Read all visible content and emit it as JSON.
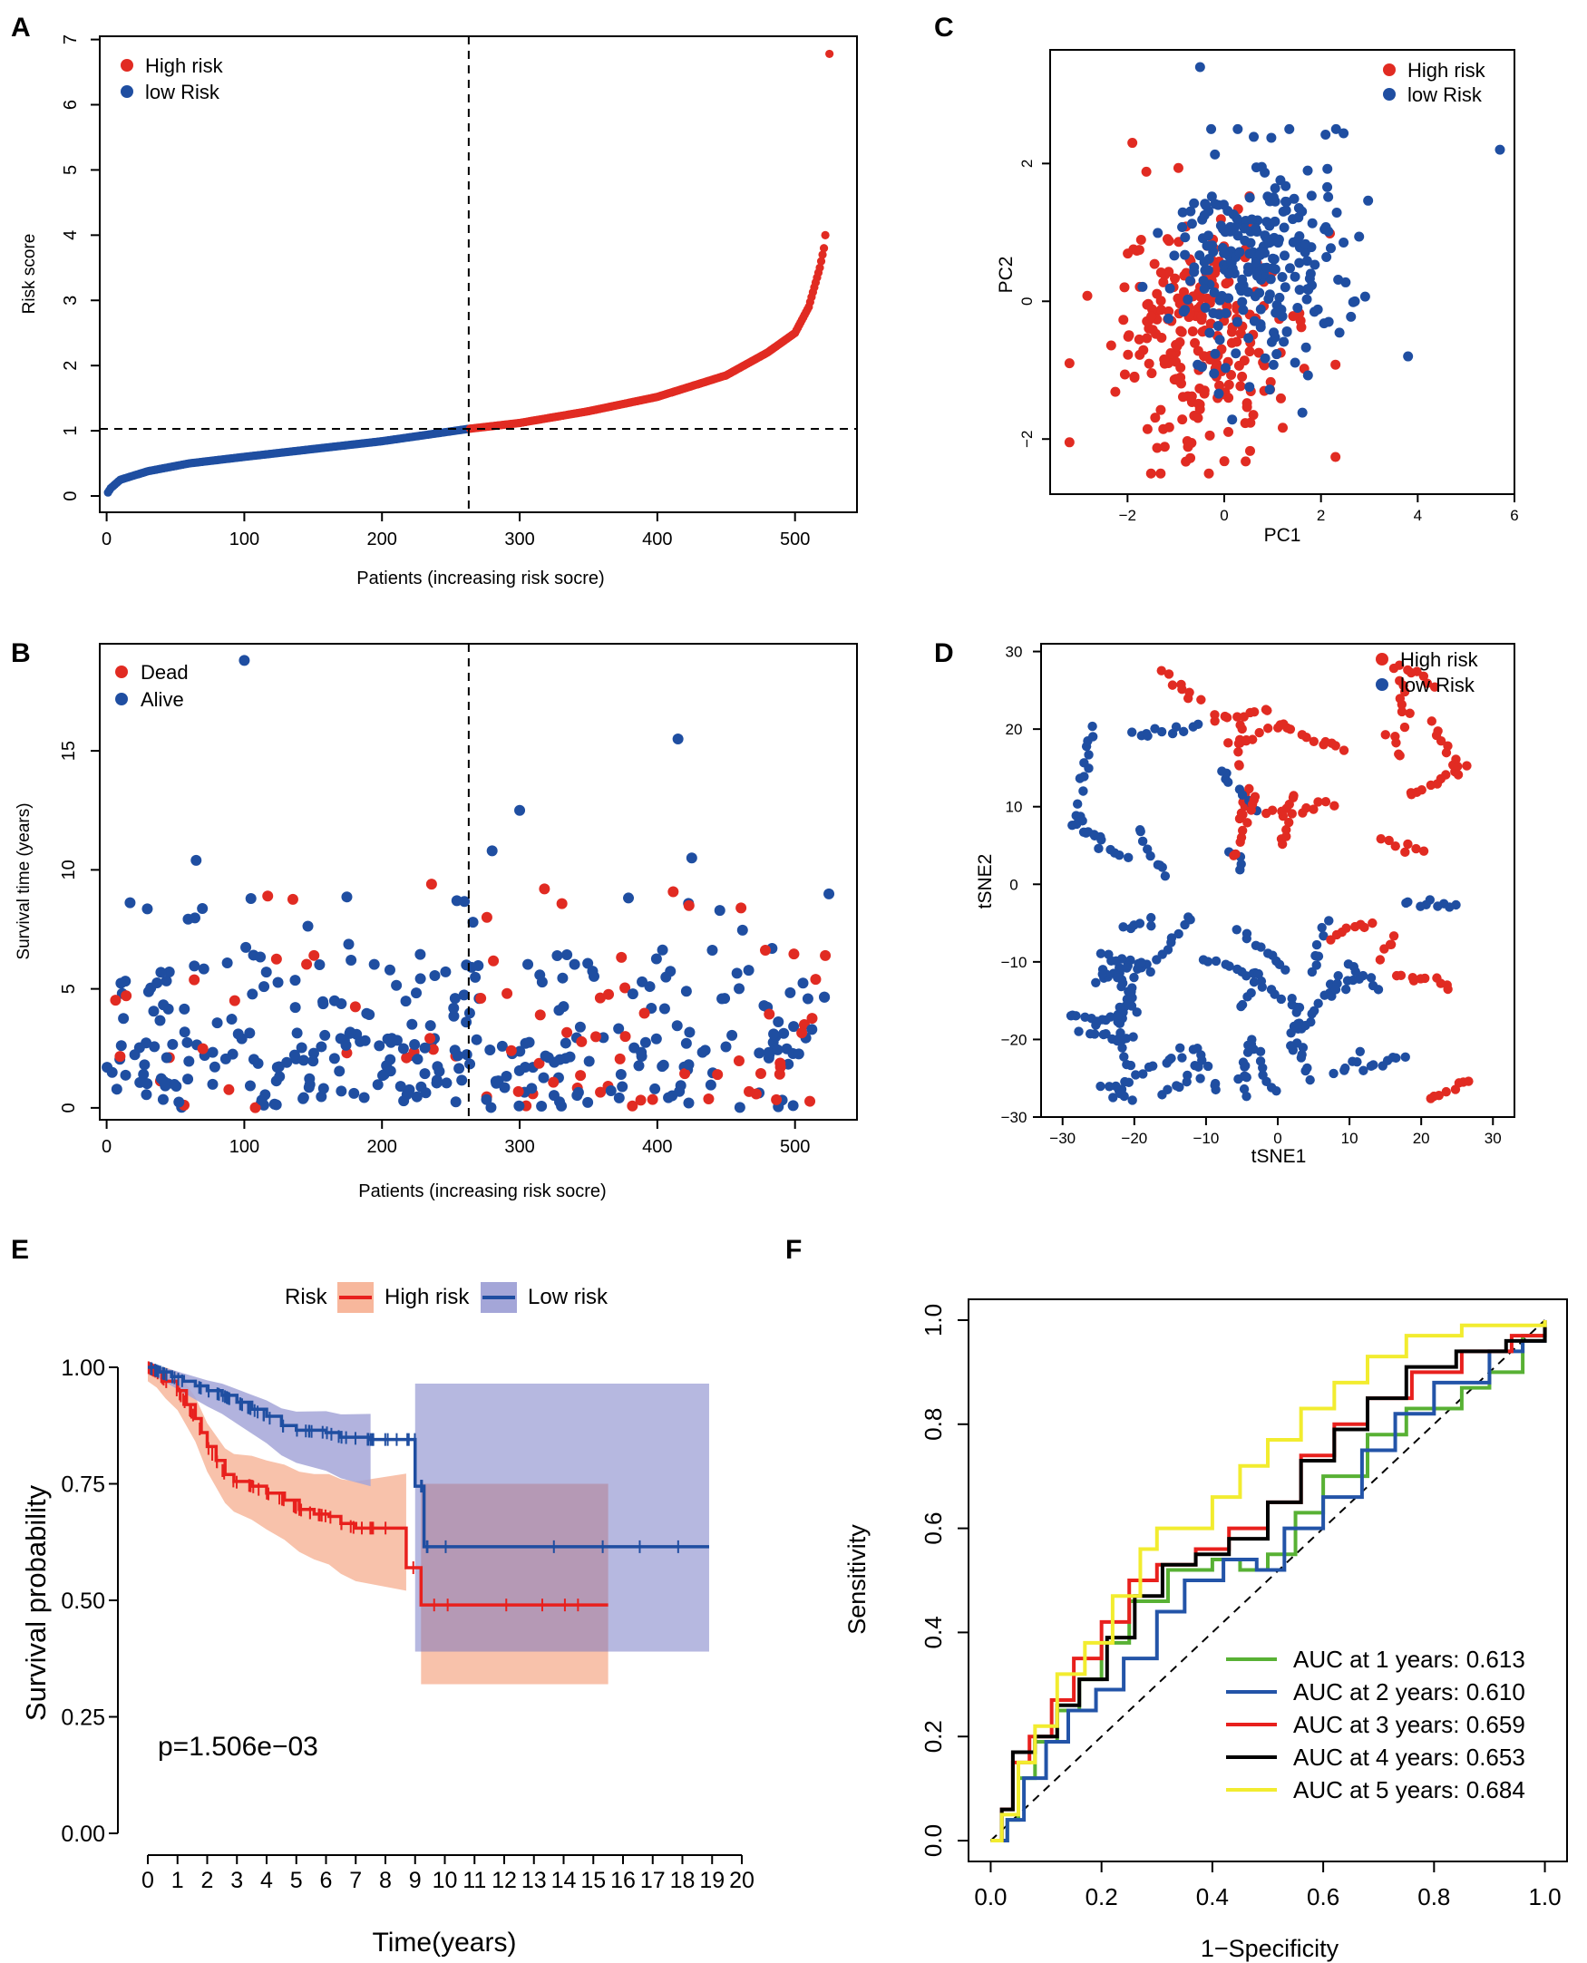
{
  "colors": {
    "high": "#e12b22",
    "low": "#1f4ea1",
    "green": "#58b134",
    "blue": "#2354a8",
    "red": "#e8201d",
    "black": "#000000",
    "yellow": "#f2ec2f",
    "high_ci": "#f7b79c",
    "low_ci": "#a4a6d8",
    "overlap": "#b58aa1"
  },
  "chart_data": [
    {
      "panel": "A",
      "type": "scatter",
      "xlabel": "Patients (increasing risk socre)",
      "ylabel": "Risk score",
      "xlim": [
        -5,
        545
      ],
      "ylim": [
        -0.25,
        7.05
      ],
      "xticks": [
        "0",
        "100",
        "200",
        "300",
        "400",
        "500"
      ],
      "yticks": [
        "0",
        "1",
        "2",
        "3",
        "4",
        "5",
        "6",
        "7"
      ],
      "cutoff_x": 263,
      "cutoff_y": 1.03,
      "n_patients": 525,
      "legend": [
        "High risk",
        "low Risk"
      ],
      "curve_anchor_points": [
        [
          0,
          0.02
        ],
        [
          3,
          0.12
        ],
        [
          10,
          0.25
        ],
        [
          30,
          0.38
        ],
        [
          60,
          0.5
        ],
        [
          100,
          0.6
        ],
        [
          150,
          0.72
        ],
        [
          200,
          0.84
        ],
        [
          263,
          1.03
        ],
        [
          300,
          1.12
        ],
        [
          350,
          1.3
        ],
        [
          400,
          1.52
        ],
        [
          450,
          1.85
        ],
        [
          480,
          2.2
        ],
        [
          500,
          2.5
        ],
        [
          510,
          2.9
        ],
        [
          518,
          3.5
        ],
        [
          521,
          3.8
        ],
        [
          522,
          4.0
        ]
      ],
      "outlier": [
        525,
        6.78
      ]
    },
    {
      "panel": "B",
      "type": "scatter",
      "xlabel": "Patients (increasing risk socre)",
      "ylabel": "Survival time (years)",
      "xlim": [
        -5,
        545
      ],
      "ylim": [
        -0.5,
        19.5
      ],
      "xticks": [
        "0",
        "100",
        "200",
        "300",
        "400",
        "500"
      ],
      "yticks": [
        "0",
        "5",
        "10",
        "15"
      ],
      "cutoff_x": 263,
      "legend": [
        "Dead",
        "Alive"
      ],
      "notable_points": [
        [
          100,
          18.8,
          "alive"
        ],
        [
          415,
          15.5,
          "alive"
        ],
        [
          300,
          12.5,
          "alive"
        ],
        [
          65,
          10.4,
          "alive"
        ],
        [
          280,
          10.8,
          "alive"
        ],
        [
          425,
          10.5,
          "alive"
        ],
        [
          117,
          8.9,
          "dead"
        ],
        [
          236,
          9.4,
          "dead"
        ],
        [
          318,
          9.2,
          "dead"
        ],
        [
          423,
          8.5,
          "dead"
        ],
        [
          522,
          6.4,
          "dead"
        ],
        [
          515,
          5.4,
          "dead"
        ]
      ]
    },
    {
      "panel": "C",
      "type": "scatter",
      "xlabel": "PC1",
      "ylabel": "PC2",
      "xlim": [
        -3.6,
        6.0
      ],
      "ylim": [
        -2.8,
        3.65
      ],
      "xticks": [
        "−2",
        "0",
        "2",
        "4",
        "6"
      ],
      "yticks": [
        "−2",
        "0",
        "2"
      ],
      "legend": [
        "High risk",
        "low Risk"
      ],
      "group_centers": {
        "High risk": [
          -0.5,
          -0.6
        ],
        "low Risk": [
          0.7,
          0.6
        ]
      },
      "notable_points": [
        [
          -0.5,
          3.4,
          "low"
        ],
        [
          5.7,
          2.2,
          "low"
        ],
        [
          3.8,
          -0.8,
          "low"
        ],
        [
          -3.2,
          -0.9,
          "high"
        ],
        [
          -1.9,
          2.3,
          "high"
        ]
      ]
    },
    {
      "panel": "D",
      "type": "scatter",
      "xlabel": "tSNE1",
      "ylabel": "tSNE2",
      "xlim": [
        -33,
        33
      ],
      "ylim": [
        -30,
        31
      ],
      "xticks": [
        "−30",
        "−20",
        "−10",
        "0",
        "10",
        "20",
        "30"
      ],
      "yticks": [
        "−30",
        "−20",
        "−10",
        "0",
        "10",
        "20",
        "30"
      ],
      "legend": [
        "High risk",
        "low Risk"
      ]
    },
    {
      "panel": "E",
      "type": "line",
      "title": "Risk",
      "xlabel": "Time(years)",
      "ylabel": "Survival probability",
      "xlim": [
        -1,
        21
      ],
      "ylim": [
        0,
        1.06
      ],
      "xticks": [
        "0",
        "1",
        "2",
        "3",
        "4",
        "5",
        "6",
        "7",
        "8",
        "9",
        "10",
        "11",
        "12",
        "13",
        "14",
        "15",
        "16",
        "17",
        "18",
        "19",
        "20"
      ],
      "yticks": [
        "0.00",
        "0.25",
        "0.50",
        "0.75",
        "1.00"
      ],
      "annotation": "p=1.506e−03",
      "series": [
        {
          "name": "High risk",
          "points": [
            [
              0,
              1.0
            ],
            [
              0.3,
              0.99
            ],
            [
              0.6,
              0.97
            ],
            [
              1.0,
              0.95
            ],
            [
              1.3,
              0.92
            ],
            [
              1.6,
              0.89
            ],
            [
              1.8,
              0.86
            ],
            [
              2.0,
              0.83
            ],
            [
              2.3,
              0.8
            ],
            [
              2.6,
              0.77
            ],
            [
              2.9,
              0.755
            ],
            [
              3.5,
              0.745
            ],
            [
              4.0,
              0.73
            ],
            [
              4.6,
              0.715
            ],
            [
              5.1,
              0.695
            ],
            [
              5.6,
              0.685
            ],
            [
              6.1,
              0.68
            ],
            [
              6.5,
              0.665
            ],
            [
              7.0,
              0.655
            ],
            [
              8.7,
              0.655
            ],
            [
              8.7,
              0.57
            ],
            [
              9.2,
              0.57
            ],
            [
              9.2,
              0.49
            ],
            [
              15.5,
              0.49
            ]
          ],
          "ci_low": [
            0,
            0.28
          ],
          "ci_high_last": 0.75
        },
        {
          "name": "Low risk",
          "points": [
            [
              0,
              1.0
            ],
            [
              0.4,
              0.99
            ],
            [
              0.8,
              0.98
            ],
            [
              1.2,
              0.97
            ],
            [
              1.6,
              0.96
            ],
            [
              2.0,
              0.95
            ],
            [
              2.5,
              0.94
            ],
            [
              3.0,
              0.925
            ],
            [
              3.5,
              0.91
            ],
            [
              4.0,
              0.895
            ],
            [
              4.5,
              0.875
            ],
            [
              5.0,
              0.865
            ],
            [
              6.0,
              0.86
            ],
            [
              6.5,
              0.85
            ],
            [
              7.5,
              0.845
            ],
            [
              9.0,
              0.845
            ],
            [
              9.0,
              0.745
            ],
            [
              9.3,
              0.745
            ],
            [
              9.3,
              0.615
            ],
            [
              18.9,
              0.615
            ]
          ]
        }
      ]
    },
    {
      "panel": "F",
      "type": "line",
      "xlabel": "1−Specificity",
      "ylabel": "Sensitivity",
      "xlim": [
        -0.04,
        1.04
      ],
      "ylim": [
        -0.04,
        1.04
      ],
      "xticks": [
        "0.0",
        "0.2",
        "0.4",
        "0.6",
        "0.8",
        "1.0"
      ],
      "yticks": [
        "0.0",
        "0.2",
        "0.4",
        "0.6",
        "0.8",
        "1.0"
      ],
      "series": [
        {
          "name": "AUC at 1 years: 0.613",
          "auc": 0.613,
          "points": [
            [
              0,
              0
            ],
            [
              0.03,
              0.04
            ],
            [
              0.05,
              0.12
            ],
            [
              0.08,
              0.19
            ],
            [
              0.12,
              0.25
            ],
            [
              0.16,
              0.31
            ],
            [
              0.2,
              0.38
            ],
            [
              0.25,
              0.46
            ],
            [
              0.32,
              0.52
            ],
            [
              0.4,
              0.54
            ],
            [
              0.45,
              0.52
            ],
            [
              0.5,
              0.55
            ],
            [
              0.55,
              0.63
            ],
            [
              0.6,
              0.7
            ],
            [
              0.68,
              0.78
            ],
            [
              0.75,
              0.83
            ],
            [
              0.85,
              0.87
            ],
            [
              0.9,
              0.9
            ],
            [
              0.96,
              0.97
            ],
            [
              1,
              1
            ]
          ]
        },
        {
          "name": "AUC at 2 years: 0.610",
          "auc": 0.61,
          "points": [
            [
              0,
              0
            ],
            [
              0.03,
              0.04
            ],
            [
              0.06,
              0.12
            ],
            [
              0.1,
              0.19
            ],
            [
              0.14,
              0.25
            ],
            [
              0.19,
              0.29
            ],
            [
              0.24,
              0.35
            ],
            [
              0.3,
              0.44
            ],
            [
              0.35,
              0.5
            ],
            [
              0.42,
              0.54
            ],
            [
              0.48,
              0.52
            ],
            [
              0.53,
              0.6
            ],
            [
              0.6,
              0.66
            ],
            [
              0.67,
              0.75
            ],
            [
              0.73,
              0.82
            ],
            [
              0.8,
              0.88
            ],
            [
              0.9,
              0.94
            ],
            [
              0.96,
              0.96
            ],
            [
              1,
              1
            ]
          ]
        },
        {
          "name": "AUC at 3 years: 0.659",
          "auc": 0.659,
          "points": [
            [
              0,
              0
            ],
            [
              0.02,
              0.06
            ],
            [
              0.04,
              0.15
            ],
            [
              0.07,
              0.2
            ],
            [
              0.11,
              0.27
            ],
            [
              0.15,
              0.35
            ],
            [
              0.2,
              0.42
            ],
            [
              0.25,
              0.5
            ],
            [
              0.3,
              0.53
            ],
            [
              0.37,
              0.56
            ],
            [
              0.43,
              0.6
            ],
            [
              0.5,
              0.65
            ],
            [
              0.56,
              0.74
            ],
            [
              0.62,
              0.8
            ],
            [
              0.68,
              0.85
            ],
            [
              0.76,
              0.9
            ],
            [
              0.85,
              0.94
            ],
            [
              0.94,
              0.97
            ],
            [
              1,
              1
            ]
          ]
        },
        {
          "name": "AUC at 4 years: 0.653",
          "auc": 0.653,
          "points": [
            [
              0,
              0
            ],
            [
              0.02,
              0.06
            ],
            [
              0.04,
              0.17
            ],
            [
              0.08,
              0.2
            ],
            [
              0.12,
              0.26
            ],
            [
              0.16,
              0.31
            ],
            [
              0.21,
              0.39
            ],
            [
              0.26,
              0.47
            ],
            [
              0.31,
              0.53
            ],
            [
              0.37,
              0.55
            ],
            [
              0.43,
              0.58
            ],
            [
              0.5,
              0.65
            ],
            [
              0.56,
              0.73
            ],
            [
              0.62,
              0.79
            ],
            [
              0.68,
              0.85
            ],
            [
              0.75,
              0.91
            ],
            [
              0.84,
              0.94
            ],
            [
              0.93,
              0.96
            ],
            [
              1,
              1
            ]
          ]
        },
        {
          "name": "AUC at 5 years: 0.684",
          "auc": 0.684,
          "points": [
            [
              0,
              0
            ],
            [
              0.02,
              0.05
            ],
            [
              0.05,
              0.15
            ],
            [
              0.08,
              0.22
            ],
            [
              0.12,
              0.32
            ],
            [
              0.17,
              0.38
            ],
            [
              0.22,
              0.47
            ],
            [
              0.27,
              0.56
            ],
            [
              0.3,
              0.6
            ],
            [
              0.36,
              0.6
            ],
            [
              0.4,
              0.66
            ],
            [
              0.45,
              0.72
            ],
            [
              0.5,
              0.77
            ],
            [
              0.56,
              0.83
            ],
            [
              0.62,
              0.88
            ],
            [
              0.68,
              0.93
            ],
            [
              0.75,
              0.97
            ],
            [
              0.85,
              0.99
            ],
            [
              1,
              1
            ]
          ]
        }
      ]
    }
  ],
  "panel_labels": [
    "A",
    "B",
    "C",
    "D",
    "E",
    "F"
  ]
}
